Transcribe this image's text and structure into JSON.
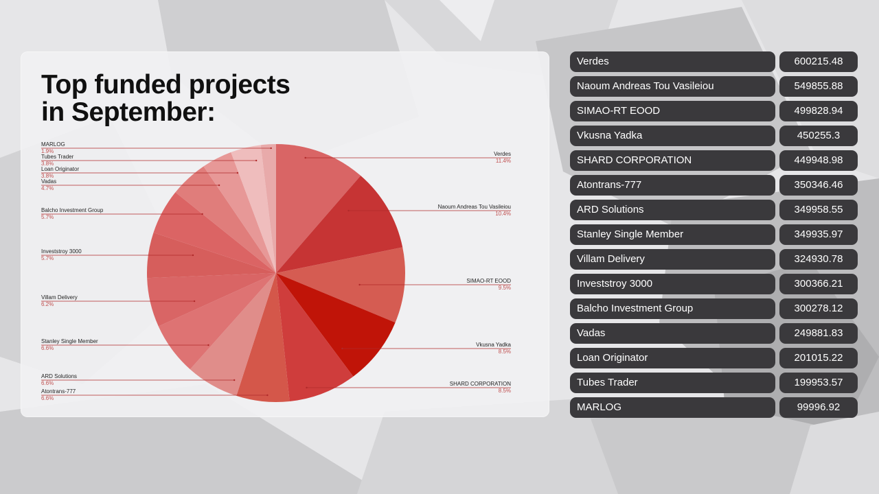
{
  "page_title_line1": "Top funded projects",
  "page_title_line2": "in September:",
  "chart_data": {
    "type": "pie",
    "title": "Top funded projects in September:",
    "slices": [
      {
        "label": "Verdes",
        "percent": "11.4%",
        "value": 600215.48,
        "color": "#d96565"
      },
      {
        "label": "Naoum Andreas Tou Vasileiou",
        "percent": "10.4%",
        "value": 549855.88,
        "color": "#c63434"
      },
      {
        "label": "SIMAO-RT EOOD",
        "percent": "9.5%",
        "value": 499828.94,
        "color": "#d55c52"
      },
      {
        "label": "Vkusna Yadka",
        "percent": "8.5%",
        "value": 450255.3,
        "color": "#c01408"
      },
      {
        "label": "SHARD CORPORATION",
        "percent": "8.5%",
        "value": 449948.98,
        "color": "#cf3d3c"
      },
      {
        "label": "Atontrans-777",
        "percent": "6.6%",
        "value": 350346.46,
        "color": "#d4574a"
      },
      {
        "label": "ARD Solutions",
        "percent": "6.6%",
        "value": 349958.55,
        "color": "#e08d8a"
      },
      {
        "label": "Stanley Single Member",
        "percent": "6.6%",
        "value": 349935.97,
        "color": "#de7373"
      },
      {
        "label": "Villam Delivery",
        "percent": "6.2%",
        "value": 324930.78,
        "color": "#d96565"
      },
      {
        "label": "Investstroy 3000",
        "percent": "5.7%",
        "value": 300366.21,
        "color": "#d65e5c"
      },
      {
        "label": "Balcho Investment Group",
        "percent": "5.7%",
        "value": 300278.12,
        "color": "#db6464"
      },
      {
        "label": "Vadas",
        "percent": "4.7%",
        "value": 249881.83,
        "color": "#e07d7b"
      },
      {
        "label": "Loan Originator",
        "percent": "3.8%",
        "value": 201015.22,
        "color": "#e79897"
      },
      {
        "label": "Tubes Trader",
        "percent": "3.8%",
        "value": 199953.57,
        "color": "#efbdbd"
      },
      {
        "label": "MARLOG",
        "percent": "1.9%",
        "value": 99996.92,
        "color": "#e8aaaa"
      }
    ]
  },
  "table": [
    {
      "name": "Verdes",
      "value": "600215.48"
    },
    {
      "name": "Naoum Andreas Tou Vasileiou",
      "value": "549855.88"
    },
    {
      "name": "SIMAO-RT EOOD",
      "value": "499828.94"
    },
    {
      "name": "Vkusna Yadka",
      "value": "450255.3"
    },
    {
      "name": "SHARD CORPORATION",
      "value": "449948.98"
    },
    {
      "name": "Atontrans-777",
      "value": "350346.46"
    },
    {
      "name": "ARD Solutions",
      "value": "349958.55"
    },
    {
      "name": "Stanley Single Member",
      "value": "349935.97"
    },
    {
      "name": "Villam Delivery",
      "value": "324930.78"
    },
    {
      "name": "Investstroy 3000",
      "value": "300366.21"
    },
    {
      "name": "Balcho Investment Group",
      "value": "300278.12"
    },
    {
      "name": "Vadas",
      "value": "249881.83"
    },
    {
      "name": "Loan Originator",
      "value": "201015.22"
    },
    {
      "name": "Tubes Trader",
      "value": "199953.57"
    },
    {
      "name": "MARLOG",
      "value": "99996.92"
    }
  ],
  "colors": {
    "leader_line": "#b02a2a",
    "percent_text": "#c05050",
    "label_text": "#222222",
    "row_bg": "#3a393c"
  }
}
